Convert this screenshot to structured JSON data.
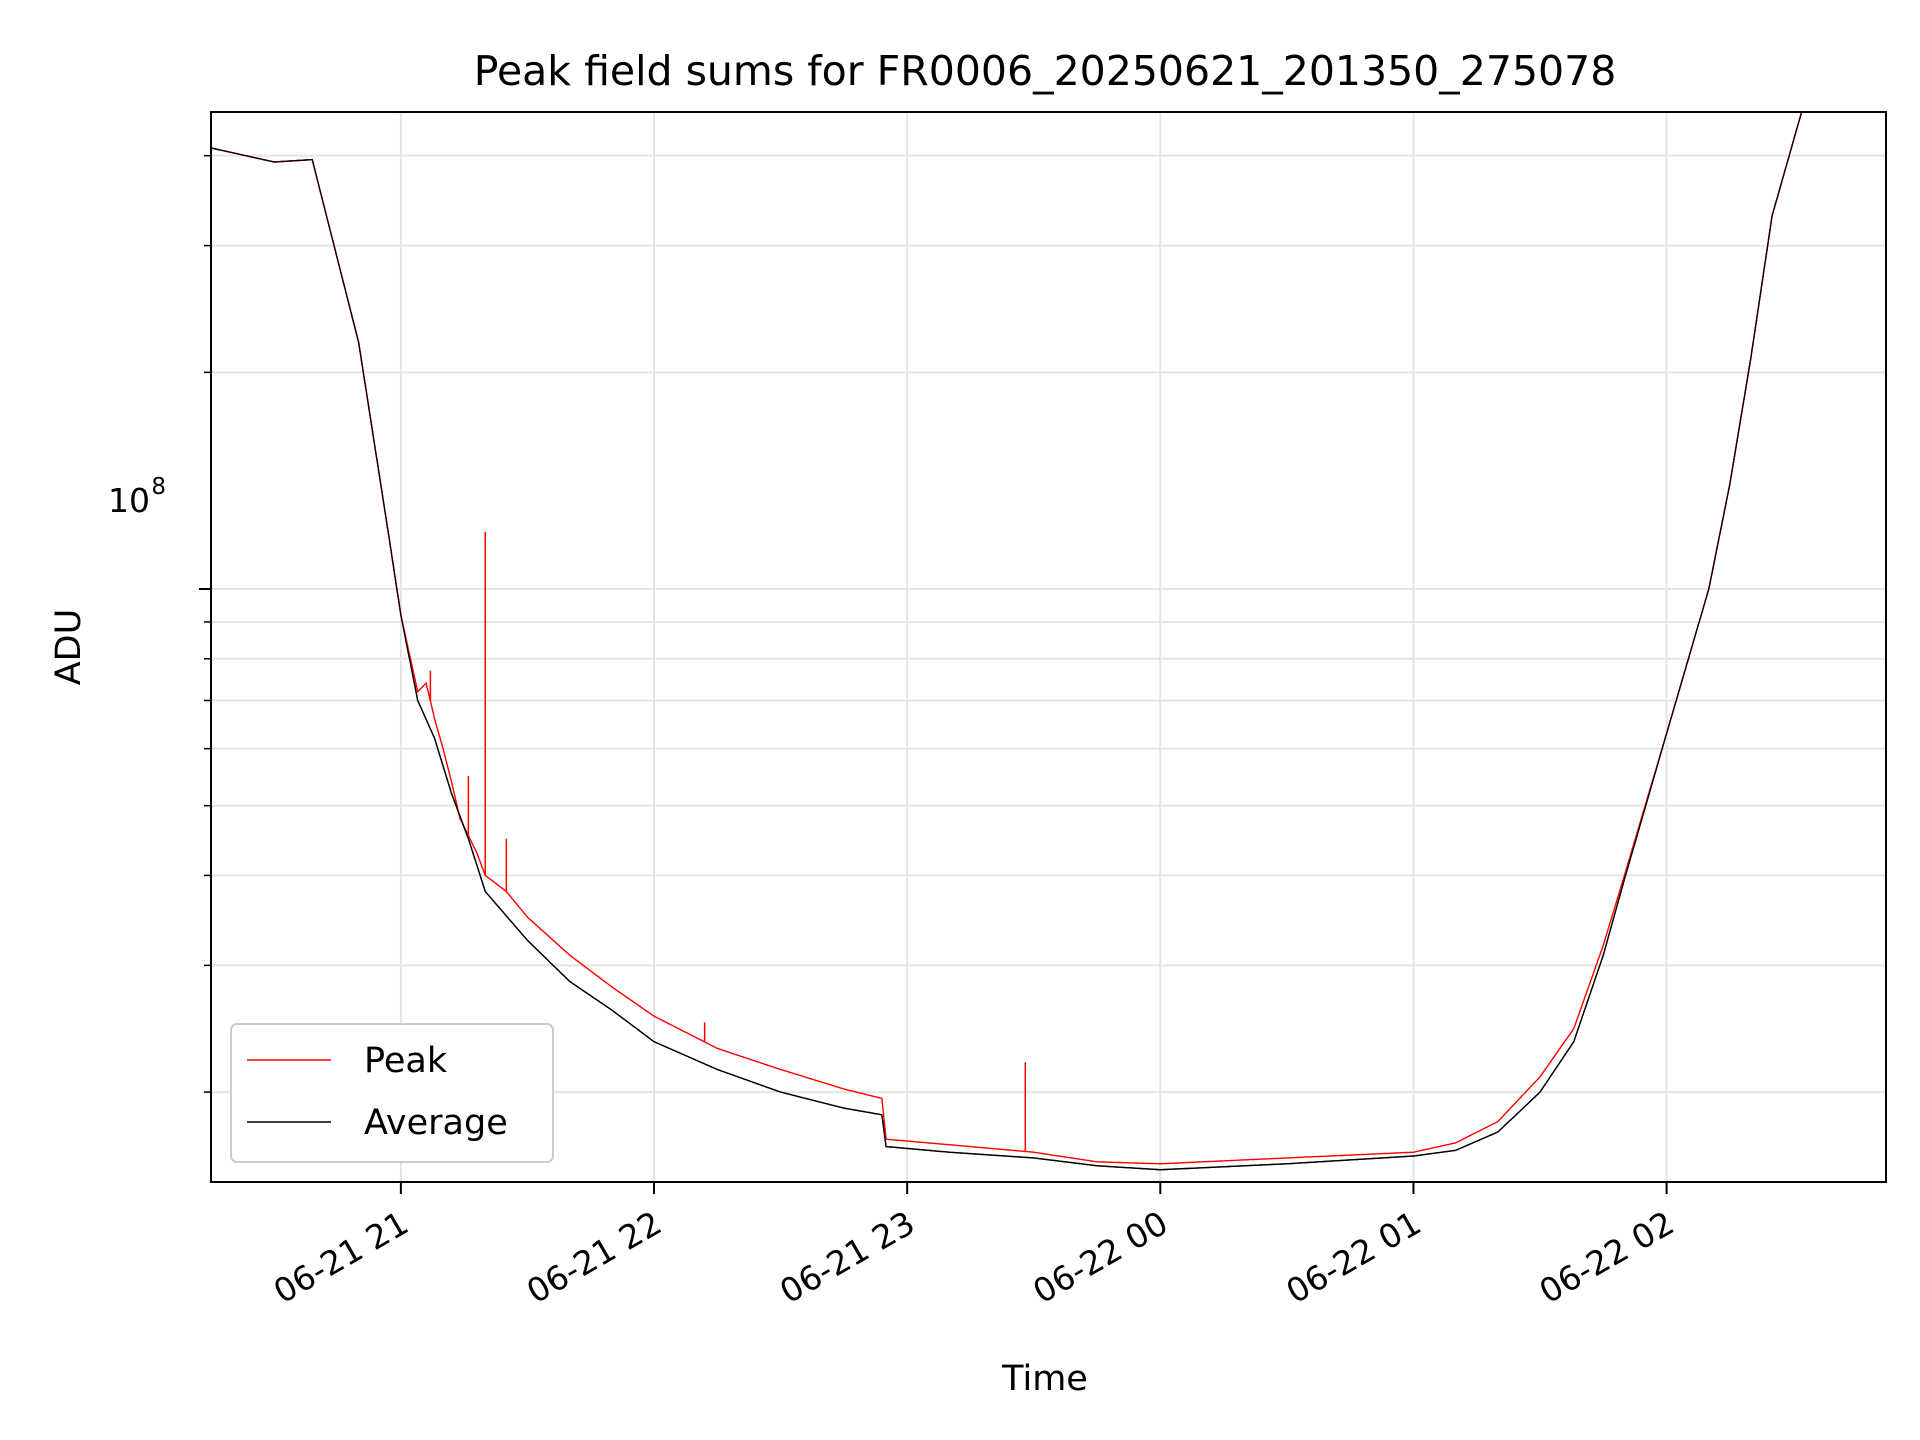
{
  "chart_data": {
    "type": "line",
    "title": "Peak field sums for FR0006_20250621_201350_275078",
    "xlabel": "Time",
    "ylabel": "ADU",
    "yscale": "log",
    "xlim": [
      "2025-06-21 20:15",
      "2025-06-22 02:52"
    ],
    "ylim": [
      15000000,
      460000000
    ],
    "x_ticks": [
      "06-21 21",
      "06-21 22",
      "06-21 23",
      "06-22 00",
      "06-22 01",
      "06-22 02"
    ],
    "y_tick_base": "10",
    "y_tick_exponent": "8",
    "y_major_tick_value": 100000000,
    "grid": true,
    "legend_position": "lower-left",
    "series": [
      {
        "name": "Peak",
        "color": "#ff0000",
        "points": [
          [
            "2025-06-21 20:15",
            410000000
          ],
          [
            "2025-06-21 20:30",
            392000000
          ],
          [
            "2025-06-21 20:39",
            395000000
          ],
          [
            "2025-06-21 20:41",
            355000000
          ],
          [
            "2025-06-21 20:50",
            220000000
          ],
          [
            "2025-06-21 20:57",
            120000000
          ],
          [
            "2025-06-21 21:00",
            92000000
          ],
          [
            "2025-06-21 21:04",
            72000000
          ],
          [
            "2025-06-21 21:06",
            74000000
          ],
          [
            "2025-06-21 21:08",
            66000000
          ],
          [
            "2025-06-21 21:10",
            60000000
          ],
          [
            "2025-06-21 21:12",
            54000000
          ],
          [
            "2025-06-21 21:14",
            48000000
          ],
          [
            "2025-06-21 21:18",
            43000000
          ],
          [
            "2025-06-21 21:20",
            40000000
          ],
          [
            "2025-06-21 21:25",
            38000000
          ],
          [
            "2025-06-21 21:30",
            35000000
          ],
          [
            "2025-06-21 21:40",
            31000000
          ],
          [
            "2025-06-21 21:50",
            28000000
          ],
          [
            "2025-06-21 22:00",
            25500000
          ],
          [
            "2025-06-21 22:15",
            23000000
          ],
          [
            "2025-06-21 22:30",
            21500000
          ],
          [
            "2025-06-21 22:45",
            20200000
          ],
          [
            "2025-06-21 22:54",
            19600000
          ],
          [
            "2025-06-21 22:55",
            17200000
          ],
          [
            "2025-06-21 23:10",
            16900000
          ],
          [
            "2025-06-21 23:30",
            16500000
          ],
          [
            "2025-06-21 23:45",
            16000000
          ],
          [
            "2025-06-22 00:00",
            15900000
          ],
          [
            "2025-06-22 00:30",
            16200000
          ],
          [
            "2025-06-22 01:00",
            16500000
          ],
          [
            "2025-06-22 01:10",
            17000000
          ],
          [
            "2025-06-22 01:20",
            18200000
          ],
          [
            "2025-06-22 01:30",
            21000000
          ],
          [
            "2025-06-22 01:38",
            24500000
          ],
          [
            "2025-06-22 01:45",
            32000000
          ],
          [
            "2025-06-22 01:50",
            40000000
          ],
          [
            "2025-06-22 02:00",
            63000000
          ],
          [
            "2025-06-22 02:10",
            100000000
          ],
          [
            "2025-06-22 02:15",
            140000000
          ],
          [
            "2025-06-22 02:20",
            210000000
          ],
          [
            "2025-06-22 02:25",
            330000000
          ],
          [
            "2025-06-22 02:32",
            460000000
          ]
        ],
        "spikes": [
          [
            "2025-06-21 21:07",
            77000000
          ],
          [
            "2025-06-21 21:16",
            55000000
          ],
          [
            "2025-06-21 21:20",
            120000000
          ],
          [
            "2025-06-21 21:25",
            45000000
          ],
          [
            "2025-06-21 21:43",
            30000000
          ],
          [
            "2025-06-21 22:12",
            25000000
          ],
          [
            "2025-06-21 23:28",
            22000000
          ]
        ]
      },
      {
        "name": "Average",
        "color": "#000000",
        "points": [
          [
            "2025-06-21 20:15",
            410000000
          ],
          [
            "2025-06-21 20:30",
            392000000
          ],
          [
            "2025-06-21 20:39",
            395000000
          ],
          [
            "2025-06-21 20:41",
            355000000
          ],
          [
            "2025-06-21 20:50",
            220000000
          ],
          [
            "2025-06-21 20:57",
            120000000
          ],
          [
            "2025-06-21 21:00",
            92000000
          ],
          [
            "2025-06-21 21:04",
            70000000
          ],
          [
            "2025-06-21 21:08",
            62000000
          ],
          [
            "2025-06-21 21:12",
            52000000
          ],
          [
            "2025-06-21 21:16",
            45000000
          ],
          [
            "2025-06-21 21:20",
            38000000
          ],
          [
            "2025-06-21 21:30",
            32500000
          ],
          [
            "2025-06-21 21:40",
            28500000
          ],
          [
            "2025-06-21 21:50",
            26000000
          ],
          [
            "2025-06-21 22:00",
            23500000
          ],
          [
            "2025-06-21 22:15",
            21500000
          ],
          [
            "2025-06-21 22:30",
            20000000
          ],
          [
            "2025-06-21 22:45",
            19000000
          ],
          [
            "2025-06-21 22:54",
            18600000
          ],
          [
            "2025-06-21 22:55",
            16800000
          ],
          [
            "2025-06-21 23:10",
            16500000
          ],
          [
            "2025-06-21 23:30",
            16200000
          ],
          [
            "2025-06-21 23:45",
            15800000
          ],
          [
            "2025-06-22 00:00",
            15600000
          ],
          [
            "2025-06-22 00:30",
            15900000
          ],
          [
            "2025-06-22 01:00",
            16300000
          ],
          [
            "2025-06-22 01:10",
            16600000
          ],
          [
            "2025-06-22 01:20",
            17600000
          ],
          [
            "2025-06-22 01:30",
            20000000
          ],
          [
            "2025-06-22 01:38",
            23500000
          ],
          [
            "2025-06-22 01:45",
            31000000
          ],
          [
            "2025-06-22 01:50",
            39500000
          ],
          [
            "2025-06-22 02:00",
            63000000
          ],
          [
            "2025-06-22 02:10",
            100000000
          ],
          [
            "2025-06-22 02:15",
            140000000
          ],
          [
            "2025-06-22 02:20",
            210000000
          ],
          [
            "2025-06-22 02:25",
            330000000
          ],
          [
            "2025-06-22 02:32",
            460000000
          ]
        ]
      }
    ]
  }
}
